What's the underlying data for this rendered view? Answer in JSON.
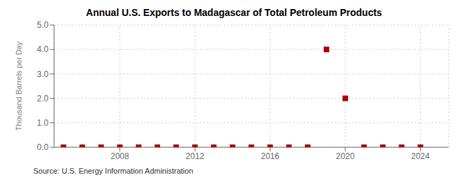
{
  "chart_data": {
    "type": "scatter",
    "title": "Annual U.S. Exports to Madagascar of Total Petroleum Products",
    "ylabel": "Thousand Barrels per Day",
    "annotations": [
      "Source: U.S. Energy Information Administration"
    ],
    "x": [
      2005,
      2006,
      2007,
      2008,
      2009,
      2010,
      2011,
      2012,
      2013,
      2014,
      2015,
      2016,
      2017,
      2018,
      2019,
      2020,
      2021,
      2022,
      2023,
      2024
    ],
    "values": [
      0.0,
      0.0,
      0.0,
      0.0,
      0.0,
      0.0,
      0.0,
      0.0,
      0.0,
      0.0,
      0.0,
      0.0,
      0.0,
      0.0,
      4.0,
      2.0,
      0.0,
      0.0,
      0.0,
      0.0
    ],
    "color": "#aa0000",
    "marker": "square",
    "xlim": [
      2004.5,
      2025.5
    ],
    "xticks": [
      2008,
      2012,
      2016,
      2020,
      2024
    ],
    "ylim": [
      0.0,
      5.0
    ],
    "yticks": [
      {
        "value": 0,
        "label": "0.0"
      },
      {
        "value": 1,
        "label": "1.0"
      },
      {
        "value": 2,
        "label": "2.0"
      },
      {
        "value": 3,
        "label": "3.0"
      },
      {
        "value": 4,
        "label": "4.0"
      },
      {
        "value": 5,
        "label": "5.0"
      }
    ],
    "grid": true
  }
}
